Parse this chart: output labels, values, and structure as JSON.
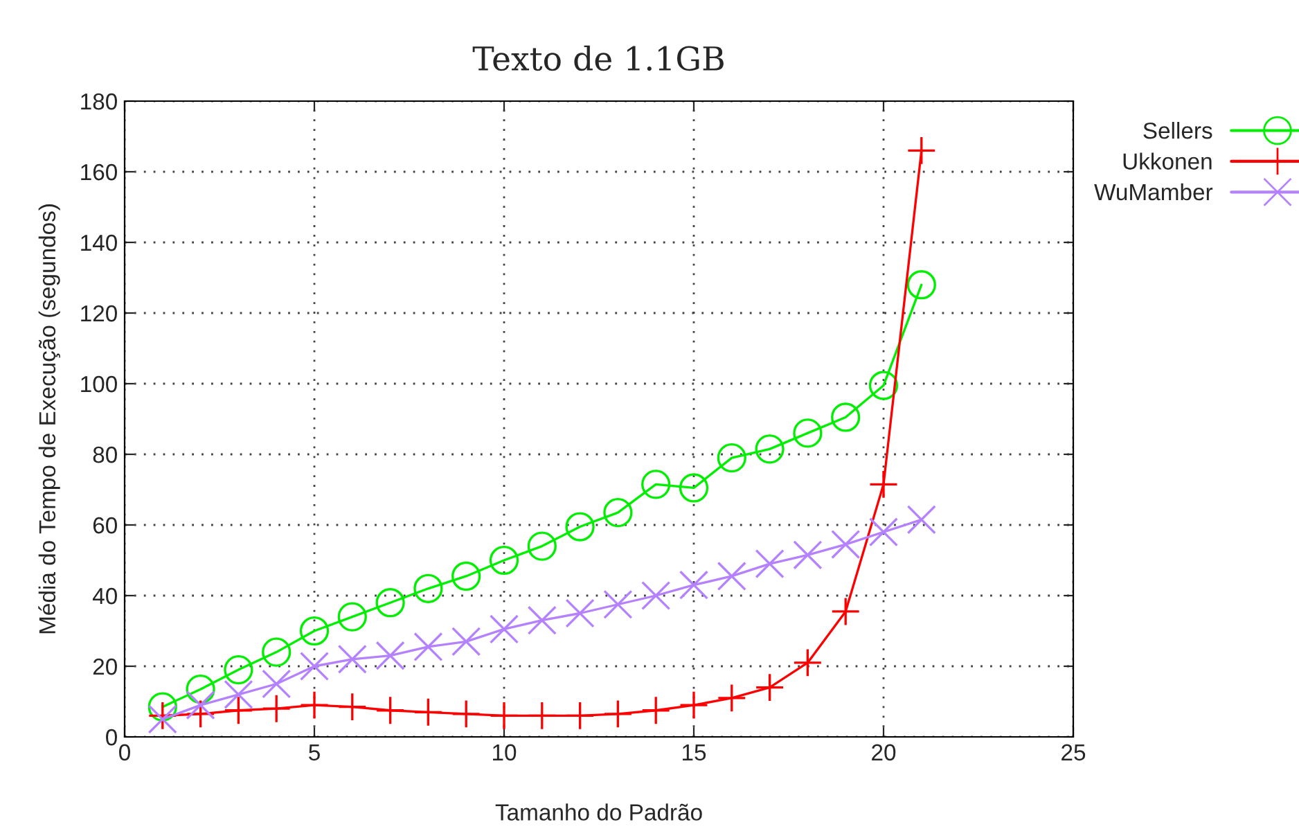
{
  "chart_data": {
    "type": "line",
    "title": "Texto de 1.1GB",
    "xlabel": "Tamanho do Padrão",
    "ylabel": "Média do Tempo de Execução (segundos)",
    "x": [
      1,
      2,
      3,
      4,
      5,
      6,
      7,
      8,
      9,
      10,
      11,
      12,
      13,
      14,
      15,
      16,
      17,
      18,
      19,
      20,
      21
    ],
    "series": [
      {
        "name": "Sellers",
        "color": "#00ee00",
        "marker": "circle",
        "values": [
          8.5,
          13.5,
          19,
          24,
          30,
          34,
          38,
          42,
          45.5,
          50,
          54,
          59.5,
          63.5,
          71.5,
          70.5,
          79,
          81.5,
          86,
          90.5,
          99.5,
          128
        ]
      },
      {
        "name": "Ukkonen",
        "color": "#ff0000",
        "marker": "plus",
        "values": [
          6,
          6.5,
          7.5,
          8,
          9,
          8.5,
          7.5,
          7,
          6.5,
          6,
          6,
          6,
          6.5,
          7.5,
          9,
          11,
          14,
          21,
          35.5,
          71.5,
          166
        ]
      },
      {
        "name": "WuMamber",
        "color": "#b482ff",
        "marker": "cross",
        "values": [
          5,
          9,
          12,
          15,
          20,
          22,
          23,
          25.5,
          27,
          30.5,
          33,
          35,
          37.5,
          40,
          43,
          45.5,
          49,
          51.5,
          54.5,
          58,
          61.5
        ]
      }
    ],
    "xlim": [
      0,
      25
    ],
    "xticks": [
      0,
      5,
      10,
      15,
      20,
      25
    ],
    "ylim": [
      0,
      180
    ],
    "yticks": [
      0,
      20,
      40,
      60,
      80,
      100,
      120,
      140,
      160,
      180
    ],
    "grid": true,
    "legend": "top right",
    "line_style": "solid"
  }
}
